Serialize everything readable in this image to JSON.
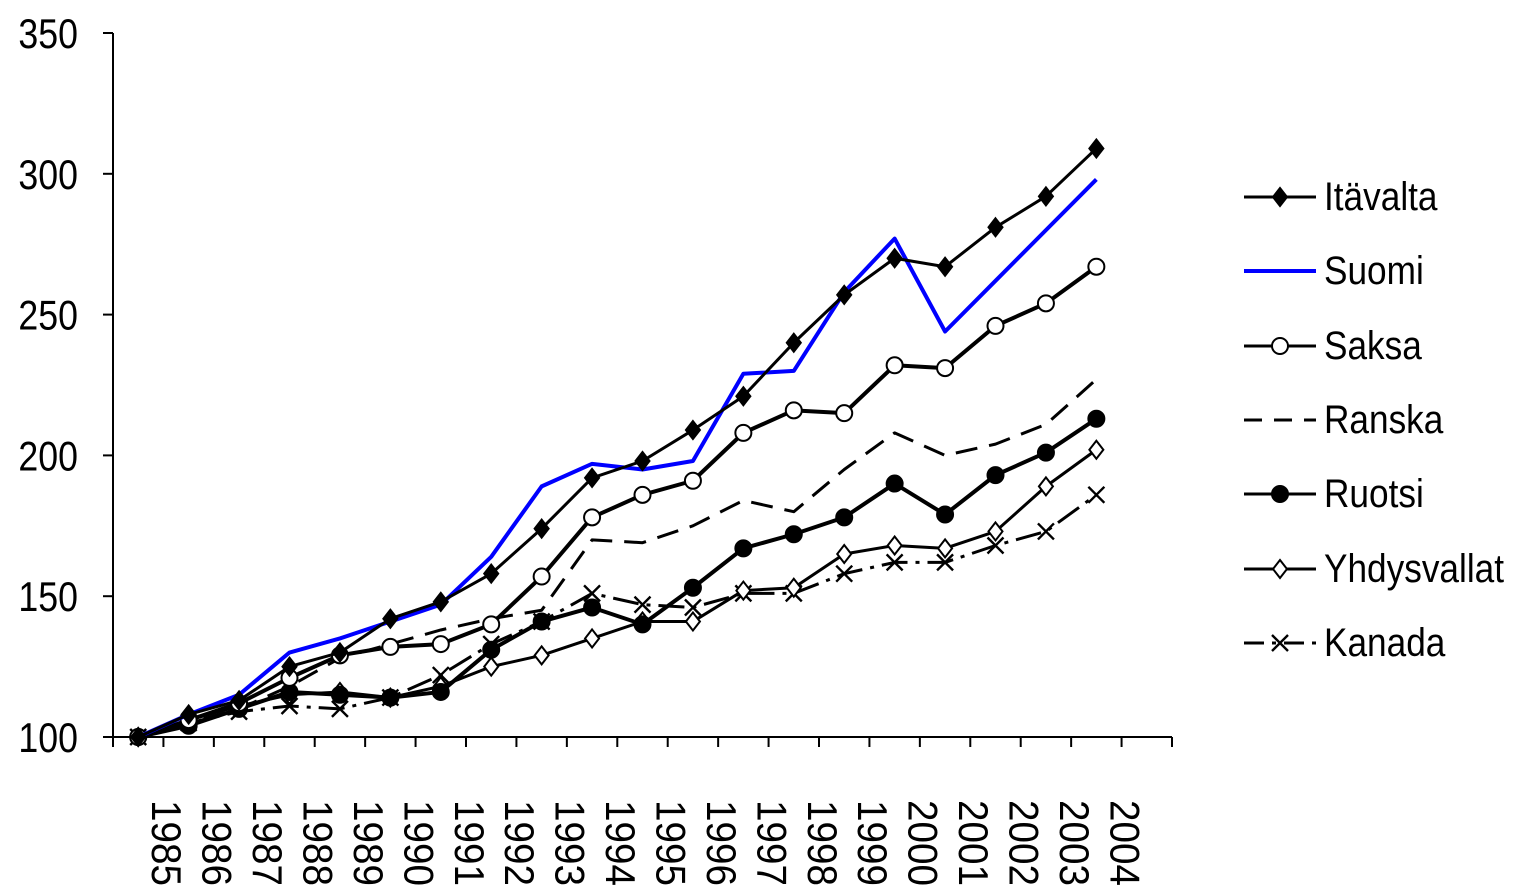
{
  "chart_data": {
    "type": "line",
    "title": "",
    "xlabel": "",
    "ylabel": "",
    "categories": [
      "1985",
      "1986",
      "1987",
      "1988",
      "1989",
      "1990",
      "1991",
      "1992",
      "1993",
      "1994",
      "1995",
      "1996",
      "1997",
      "1998",
      "1999",
      "2000",
      "2001",
      "2002",
      "2003",
      "2004"
    ],
    "ylim": [
      100,
      350
    ],
    "yticks": [
      "100",
      "150",
      "200",
      "250",
      "300",
      "350"
    ],
    "grid": false,
    "legend_position": "right",
    "series": [
      {
        "name": "Itävalta",
        "marker": "diamond-filled",
        "color": "#000000",
        "dash": "solid",
        "values": [
          100,
          108,
          113,
          125,
          130,
          142,
          148,
          158,
          174,
          192,
          198,
          209,
          221,
          240,
          257,
          270,
          267,
          281,
          292,
          309
        ]
      },
      {
        "name": "Suomi",
        "marker": "none",
        "color": "#0000ff",
        "dash": "solid",
        "values": [
          100,
          108,
          115,
          130,
          135,
          141,
          147,
          164,
          189,
          197,
          195,
          198,
          229,
          230,
          258,
          277,
          244,
          262,
          280,
          298
        ]
      },
      {
        "name": "Saksa",
        "marker": "circle-open",
        "color": "#000000",
        "dash": "solid",
        "values": [
          100,
          106,
          112,
          121,
          129,
          132,
          133,
          140,
          157,
          178,
          186,
          191,
          208,
          216,
          215,
          232,
          231,
          246,
          254,
          267
        ]
      },
      {
        "name": "Ranska",
        "marker": "none",
        "color": "#000000",
        "dash": "dashed",
        "values": [
          100,
          105,
          110,
          118,
          128,
          133,
          138,
          142,
          145,
          170,
          169,
          175,
          184,
          180,
          195,
          208,
          200,
          204,
          211,
          227
        ]
      },
      {
        "name": "Ruotsi",
        "marker": "circle-filled",
        "color": "#000000",
        "dash": "solid",
        "values": [
          100,
          104,
          110,
          116,
          115,
          114,
          116,
          131,
          141,
          146,
          140,
          153,
          167,
          172,
          178,
          190,
          179,
          193,
          201,
          213
        ]
      },
      {
        "name": "Yhdysvallat",
        "marker": "diamond-open",
        "color": "#000000",
        "dash": "solid",
        "values": [
          100,
          106,
          111,
          115,
          116,
          114,
          118,
          125,
          129,
          135,
          141,
          141,
          152,
          153,
          165,
          168,
          167,
          173,
          189,
          202
        ]
      },
      {
        "name": "Kanada",
        "marker": "x",
        "color": "#000000",
        "dash": "dash-dot",
        "values": [
          100,
          105,
          109,
          111,
          110,
          114,
          122,
          133,
          141,
          151,
          147,
          146,
          151,
          151,
          158,
          162,
          162,
          168,
          173,
          186
        ]
      }
    ]
  }
}
